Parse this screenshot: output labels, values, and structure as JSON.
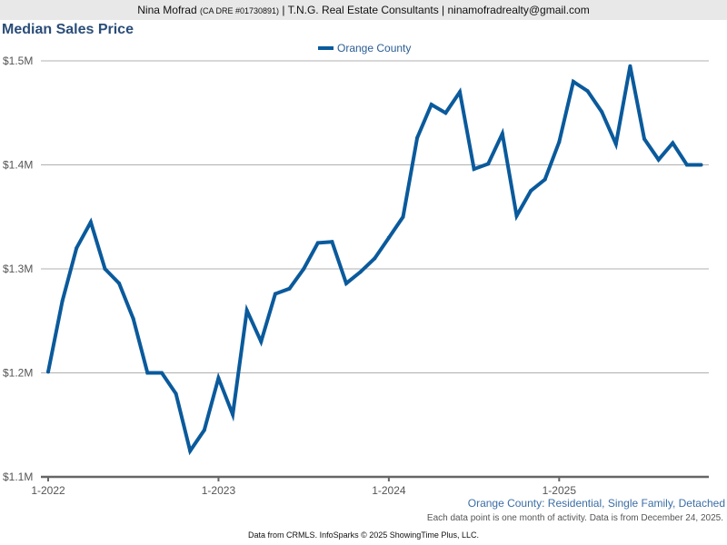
{
  "header": {
    "name": "Nina Mofrad",
    "license": "(CA DRE #01730891)",
    "rest": "| T.N.G. Real Estate Consultants | ninamofradrealty@gmail.com"
  },
  "chart_data": {
    "type": "line",
    "title": "Median Sales Price",
    "xlabel": "",
    "ylabel": "",
    "legend_position": "top-center",
    "grid": true,
    "ylim": [
      1100000,
      1500000
    ],
    "y_ticks": [
      {
        "value": 1100000,
        "label": "$1.1M"
      },
      {
        "value": 1200000,
        "label": "$1.2M"
      },
      {
        "value": 1300000,
        "label": "$1.3M"
      },
      {
        "value": 1400000,
        "label": "$1.4M"
      },
      {
        "value": 1500000,
        "label": "$1.5M"
      }
    ],
    "x_ticks": [
      "1-2022",
      "1-2023",
      "1-2024",
      "1-2025"
    ],
    "x_start": "1-2022",
    "x_end": "11-2025",
    "series": [
      {
        "name": "Orange County",
        "color": "#0a5a9c",
        "values": [
          1201000,
          1269000,
          1320000,
          1345000,
          1300000,
          1286000,
          1252000,
          1200000,
          1200000,
          1180000,
          1125000,
          1145000,
          1195000,
          1160000,
          1260000,
          1230000,
          1276000,
          1281000,
          1300000,
          1325000,
          1326000,
          1286000,
          1297000,
          1310000,
          1330000,
          1350000,
          1426000,
          1458000,
          1450000,
          1470000,
          1396000,
          1401000,
          1430000,
          1351000,
          1375000,
          1386000,
          1422000,
          1480000,
          1471000,
          1451000,
          1420000,
          1495000,
          1425000,
          1405000,
          1421000,
          1400000,
          1400000
        ]
      }
    ],
    "subtitle": "Orange County: Residential, Single Family, Detached",
    "note": "Each data point is one month of activity. Data is from December 24, 2025."
  },
  "footer": {
    "credit": "Data from CRMLS. InfoSparks © 2025 ShowingTime Plus, LLC."
  }
}
